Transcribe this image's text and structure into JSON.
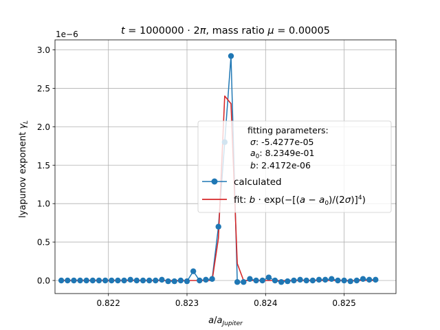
{
  "chart_data": {
    "type": "line",
    "title": "t = 1000000 · 2π, mass ratio μ = 0.00005",
    "xlabel": "a/a_Jupiter",
    "ylabel": "lyapunov exponent γ_L",
    "y_multiplier": "1e−6",
    "xlim": [
      0.82132,
      0.82566
    ],
    "ylim": [
      -0.17,
      3.13
    ],
    "x_ticks": [
      0.822,
      0.823,
      0.824,
      0.825
    ],
    "x_tick_labels": [
      "0.822",
      "0.823",
      "0.824",
      "0.825"
    ],
    "y_ticks": [
      0.0,
      0.5,
      1.0,
      1.5,
      2.0,
      2.5,
      3.0
    ],
    "y_tick_labels": [
      "0.0",
      "0.5",
      "1.0",
      "1.5",
      "2.0",
      "2.5",
      "3.0"
    ],
    "grid": true,
    "legend": {
      "placement": "center-right",
      "header": "fitting parameters:",
      "params": [
        {
          "symbol": "σ",
          "value": ": -5.4277e-05"
        },
        {
          "symbol": "a",
          "sub": "0",
          "value": ": 8.2349e-01"
        },
        {
          "symbol": "b",
          "value": ": 2.4172e-06"
        }
      ],
      "entries": [
        "calculated",
        "fit: b·exp(−[(a − a₀)/(2σ)]⁴)"
      ]
    },
    "series": [
      {
        "name": "calculated",
        "color": "#1f77b4",
        "x": [
          0.8214,
          0.82148,
          0.82156,
          0.82164,
          0.82172,
          0.8218,
          0.82188,
          0.82196,
          0.82204,
          0.82212,
          0.8222,
          0.82228,
          0.82236,
          0.82244,
          0.82252,
          0.8226,
          0.82268,
          0.82276,
          0.82284,
          0.82292,
          0.823,
          0.82308,
          0.82316,
          0.82324,
          0.82332,
          0.8234,
          0.82348,
          0.82356,
          0.82364,
          0.82372,
          0.8238,
          0.82388,
          0.82396,
          0.82404,
          0.82412,
          0.8242,
          0.82428,
          0.82436,
          0.82444,
          0.82452,
          0.8246,
          0.82468,
          0.82476,
          0.82484,
          0.82492,
          0.825,
          0.82508,
          0.82516,
          0.82524,
          0.82532,
          0.8254
        ],
        "y": [
          0.0,
          0.0,
          0.0,
          0.0,
          0.0,
          0.0,
          0.0,
          0.0,
          0.0,
          0.0,
          0.0,
          0.01,
          0.0,
          0.0,
          0.0,
          0.0,
          0.01,
          -0.01,
          -0.01,
          0.0,
          -0.01,
          0.12,
          0.0,
          0.01,
          0.02,
          0.7,
          1.8,
          2.92,
          -0.02,
          -0.02,
          0.02,
          0.0,
          0.0,
          0.04,
          0.0,
          -0.02,
          -0.01,
          0.0,
          0.01,
          0.0,
          0.0,
          0.01,
          0.01,
          0.02,
          0.0,
          0.0,
          -0.01,
          0.0,
          0.02,
          0.01,
          0.01
        ]
      },
      {
        "name": "fit: b·exp(−[(a − a₀)/(2σ)]⁴)",
        "color": "#d62728",
        "x": [
          0.8214,
          0.82148,
          0.82156,
          0.82164,
          0.82172,
          0.8218,
          0.82188,
          0.82196,
          0.82204,
          0.82212,
          0.8222,
          0.82228,
          0.82236,
          0.82244,
          0.82252,
          0.8226,
          0.82268,
          0.82276,
          0.82284,
          0.82292,
          0.823,
          0.82308,
          0.82316,
          0.82324,
          0.82332,
          0.8234,
          0.82348,
          0.82356,
          0.82364,
          0.82372,
          0.8238,
          0.82388,
          0.82396,
          0.82404,
          0.82412,
          0.8242,
          0.82428,
          0.82436,
          0.82444,
          0.82452,
          0.8246,
          0.82468,
          0.82476,
          0.82484,
          0.82492,
          0.825,
          0.82508,
          0.82516,
          0.82524,
          0.82532,
          0.8254
        ],
        "y": [
          0.0,
          0.0,
          0.0,
          0.0,
          0.0,
          0.0,
          0.0,
          0.0,
          0.0,
          0.0,
          0.0,
          0.0,
          0.0,
          0.0,
          0.0,
          0.0,
          0.0,
          0.0,
          0.0,
          0.0,
          0.0,
          0.0,
          0.0,
          0.0,
          0.0,
          0.55,
          2.4,
          2.3,
          0.22,
          0.0,
          0.0,
          0.0,
          0.0,
          0.0,
          0.0,
          0.0,
          0.0,
          0.0,
          0.0,
          0.0,
          0.0,
          0.0,
          0.0,
          0.0,
          0.0,
          0.0,
          0.0,
          0.0,
          0.0,
          0.0,
          0.0
        ]
      }
    ]
  }
}
